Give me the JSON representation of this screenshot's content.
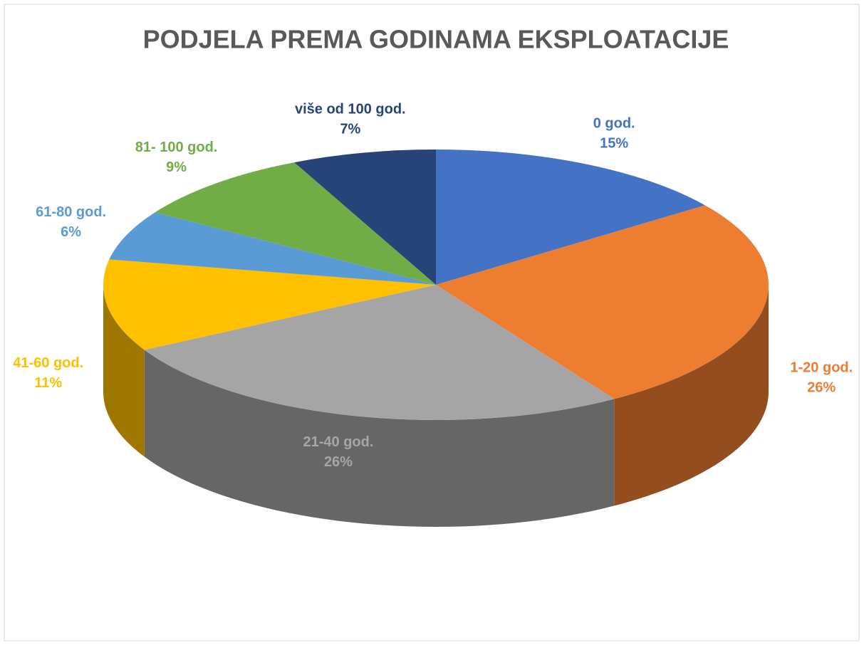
{
  "chart_data": {
    "type": "pie",
    "title": "PODJELA PREMA GODINAMA EKSPLOATACIJE",
    "categories": [
      "0 god.",
      "1-20 god.",
      "21-40 god.",
      "41-60 god.",
      "61-80 god.",
      "81- 100 god.",
      "više od 100 god."
    ],
    "values": [
      15,
      26,
      26,
      11,
      6,
      9,
      7
    ],
    "value_labels": [
      "15%",
      "26%",
      "26%",
      "11%",
      "6%",
      "9%",
      "7%"
    ],
    "colors": [
      "#4472c4",
      "#ed7d31",
      "#a5a5a5",
      "#ffc000",
      "#5b9bd5",
      "#70ad47",
      "#264478"
    ]
  }
}
